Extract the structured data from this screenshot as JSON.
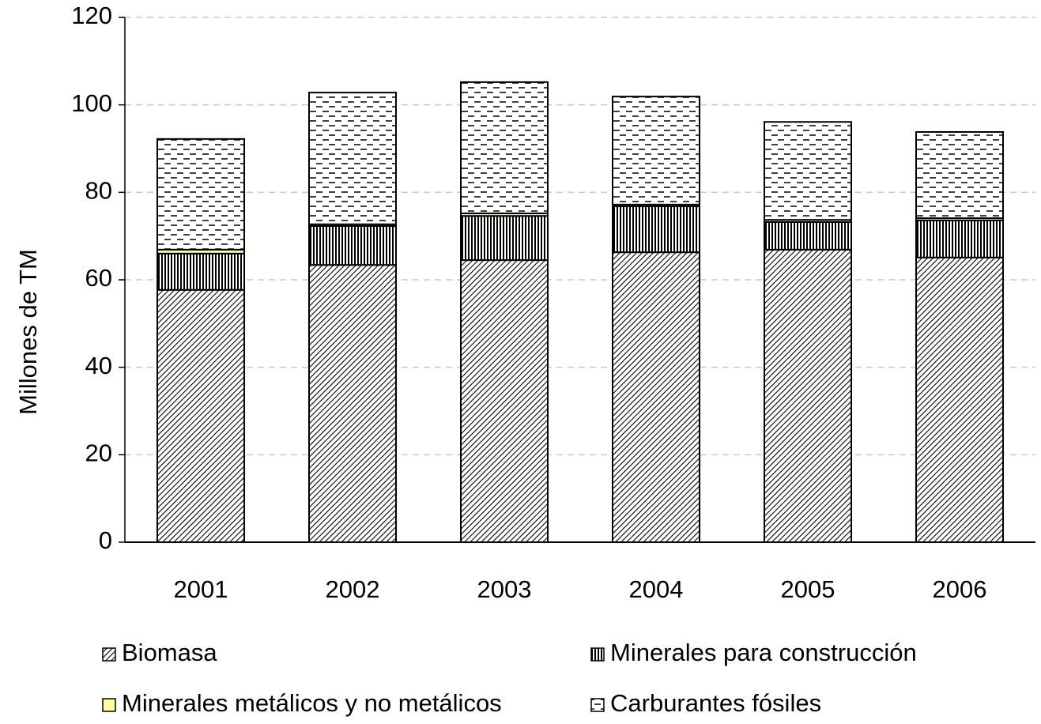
{
  "chart_data": {
    "type": "stacked_bar",
    "y_label": "Millones de TM",
    "categories": [
      "2001",
      "2002",
      "2003",
      "2004",
      "2005",
      "2006"
    ],
    "series": [
      {
        "name": "Biomasa",
        "color": "#000000",
        "values": [
          57.7,
          63.4,
          64.5,
          66.3,
          66.9,
          65.1
        ]
      },
      {
        "name": "Minerales para construcción",
        "color": "#000000",
        "values": [
          8.3,
          8.9,
          10.1,
          10.5,
          6.3,
          8.5
        ]
      },
      {
        "name": "Minerales metálicos y no metálicos",
        "color": "#ffff99",
        "values": [
          0.9,
          0.4,
          0.6,
          0.4,
          0.5,
          0.5
        ]
      },
      {
        "name": "Carburantes fósiles",
        "color": "#000000",
        "values": [
          25.3,
          30.1,
          30.0,
          24.7,
          22.4,
          19.7
        ]
      }
    ],
    "ylim": [
      0,
      120
    ],
    "yticks": [
      0,
      20,
      40,
      60,
      80,
      100,
      120
    ],
    "grid": true
  }
}
